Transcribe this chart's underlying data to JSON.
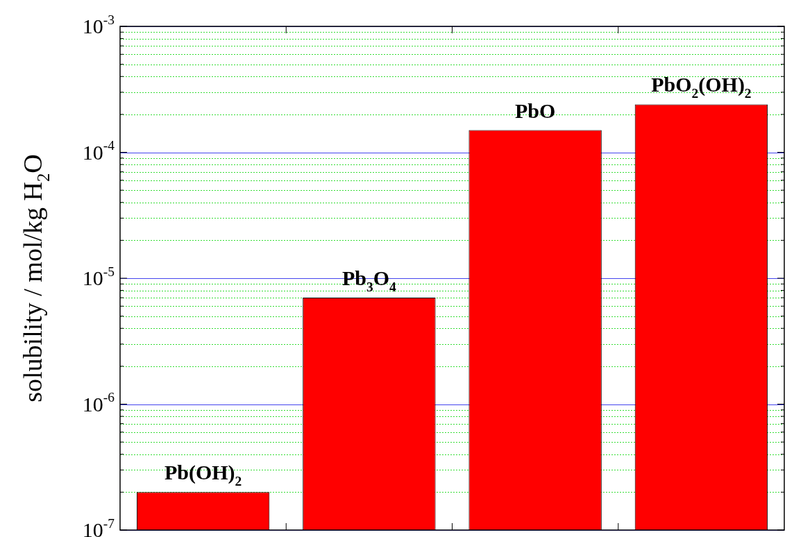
{
  "chart_data": {
    "type": "bar",
    "ylabel": "solubility / mol/kg H$_{2}$O",
    "categories": [
      "Pb(OH)$_{2}$",
      "Pb$_{3}$O$_{4}$",
      "PbO",
      "PbO$_{2}$(OH)$_{2}$"
    ],
    "values": [
      2e-07,
      7e-06,
      0.00015,
      0.00024
    ],
    "color": "#ff0000",
    "log": true,
    "ylim": [
      1e-07,
      0.001
    ],
    "yticks": [
      {
        "value": 1e-07,
        "label": "10$^{-7}$"
      },
      {
        "value": 2e-07,
        "label": null
      },
      {
        "value": 3e-07,
        "label": null
      },
      {
        "value": 4e-07,
        "label": null
      },
      {
        "value": 5e-07,
        "label": null
      },
      {
        "value": 6e-07,
        "label": null
      },
      {
        "value": 7e-07,
        "label": null
      },
      {
        "value": 8e-07,
        "label": null
      },
      {
        "value": 9e-07,
        "label": null
      },
      {
        "value": 1e-06,
        "label": "10$^{-6}$"
      },
      {
        "value": 2e-06,
        "label": null
      },
      {
        "value": 3e-06,
        "label": null
      },
      {
        "value": 4e-06,
        "label": null
      },
      {
        "value": 5e-06,
        "label": null
      },
      {
        "value": 6e-06,
        "label": null
      },
      {
        "value": 7e-06,
        "label": null
      },
      {
        "value": 8e-06,
        "label": null
      },
      {
        "value": 9e-06,
        "label": null
      },
      {
        "value": 1e-05,
        "label": "10$^{-5}$"
      },
      {
        "value": 2e-05,
        "label": null
      },
      {
        "value": 3e-05,
        "label": null
      },
      {
        "value": 4e-05,
        "label": null
      },
      {
        "value": 5e-05,
        "label": null
      },
      {
        "value": 6e-05,
        "label": null
      },
      {
        "value": 7e-05,
        "label": null
      },
      {
        "value": 8e-05,
        "label": null
      },
      {
        "value": 9e-05,
        "label": null
      },
      {
        "value": 0.0001,
        "label": "10$^{-4}$"
      },
      {
        "value": 0.0002,
        "label": null
      },
      {
        "value": 0.0003,
        "label": null
      },
      {
        "value": 0.0004,
        "label": null
      },
      {
        "value": 0.0005,
        "label": null
      },
      {
        "value": 0.0006,
        "label": null
      },
      {
        "value": 0.0007,
        "label": null
      },
      {
        "value": 0.0008,
        "label": null
      },
      {
        "value": 0.0009,
        "label": null
      },
      {
        "value": 0.001,
        "label": "10$^{-3}$"
      }
    ],
    "grid": "y",
    "tick_labels": "y",
    "legend": false
  }
}
